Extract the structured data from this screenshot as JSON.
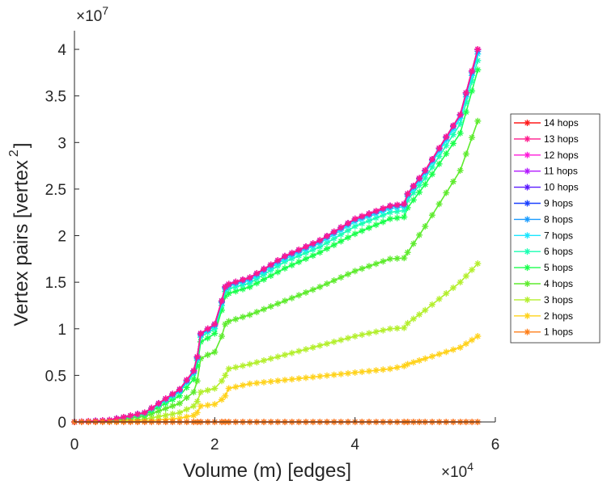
{
  "chart_data": {
    "type": "line",
    "xlabel": "Volume (m) [edges]",
    "ylabel": "Vertex pairs [vertex",
    "ylabel_superscript": "2",
    "ylabel_close": "]",
    "x_exponent_base": "×10",
    "x_exponent_power": "4",
    "y_exponent_base": "×10",
    "y_exponent_power": "7",
    "xlim": [
      0,
      6
    ],
    "ylim": [
      0,
      4.2
    ],
    "xticks": [
      0,
      2,
      4,
      6
    ],
    "xtick_labels": [
      "0",
      "2",
      "4",
      "6"
    ],
    "yticks": [
      0,
      0.5,
      1,
      1.5,
      2,
      2.5,
      3,
      3.5,
      4
    ],
    "ytick_labels": [
      "0",
      "0.5",
      "1",
      "1.5",
      "2",
      "2.5",
      "3",
      "3.5",
      "4"
    ],
    "grid": false,
    "legend_position": "right",
    "series": [
      {
        "name": "14 hops",
        "color": "#ff1a1a",
        "x": [
          0,
          0.5,
          1,
          1.5,
          1.7,
          1.75,
          1.8,
          1.9,
          2,
          2.1,
          2.15,
          2.2,
          2.5,
          3,
          3.5,
          4,
          4.5,
          4.7,
          4.75,
          5,
          5.5,
          5.75
        ],
        "values": [
          0,
          0,
          0,
          0,
          0,
          0,
          0,
          0,
          0,
          0,
          0,
          0,
          0,
          0,
          0,
          0,
          0,
          0,
          0,
          0,
          0,
          0
        ]
      },
      {
        "name": "13 hops",
        "color": "#ff1a8c",
        "x": [
          0,
          0.5,
          1,
          1.5,
          1.7,
          1.75,
          1.8,
          1.9,
          2,
          2.1,
          2.15,
          2.2,
          2.5,
          3,
          3.5,
          4,
          4.5,
          4.7,
          4.75,
          5,
          5.5,
          5.75
        ],
        "values": [
          0,
          0.02,
          0.1,
          0.35,
          0.55,
          0.7,
          0.95,
          1.0,
          1.05,
          1.3,
          1.45,
          1.48,
          1.55,
          1.78,
          1.95,
          2.18,
          2.32,
          2.34,
          2.45,
          2.7,
          3.3,
          4.0
        ]
      },
      {
        "name": "12 hops",
        "color": "#ff1ad9",
        "x": [
          0,
          0.5,
          1,
          1.5,
          1.7,
          1.75,
          1.8,
          1.9,
          2,
          2.1,
          2.15,
          2.2,
          2.5,
          3,
          3.5,
          4,
          4.5,
          4.7,
          4.75,
          5,
          5.5,
          5.75
        ],
        "values": [
          0,
          0.02,
          0.1,
          0.35,
          0.55,
          0.7,
          0.95,
          1.0,
          1.05,
          1.3,
          1.45,
          1.48,
          1.55,
          1.78,
          1.95,
          2.18,
          2.32,
          2.34,
          2.45,
          2.7,
          3.3,
          4.0
        ]
      },
      {
        "name": "11 hops",
        "color": "#b31aff",
        "x": [
          0,
          0.5,
          1,
          1.5,
          1.7,
          1.75,
          1.8,
          1.9,
          2,
          2.1,
          2.15,
          2.2,
          2.5,
          3,
          3.5,
          4,
          4.5,
          4.7,
          4.75,
          5,
          5.5,
          5.75
        ],
        "values": [
          0,
          0.02,
          0.1,
          0.35,
          0.55,
          0.7,
          0.95,
          1.0,
          1.05,
          1.3,
          1.45,
          1.48,
          1.55,
          1.78,
          1.95,
          2.18,
          2.32,
          2.34,
          2.45,
          2.7,
          3.3,
          4.0
        ]
      },
      {
        "name": "10 hops",
        "color": "#5a1aff",
        "x": [
          0,
          0.5,
          1,
          1.5,
          1.7,
          1.75,
          1.8,
          1.9,
          2,
          2.1,
          2.15,
          2.2,
          2.5,
          3,
          3.5,
          4,
          4.5,
          4.7,
          4.75,
          5,
          5.5,
          5.75
        ],
        "values": [
          0,
          0.02,
          0.1,
          0.35,
          0.55,
          0.7,
          0.95,
          1.0,
          1.05,
          1.3,
          1.45,
          1.48,
          1.55,
          1.78,
          1.95,
          2.18,
          2.32,
          2.34,
          2.45,
          2.7,
          3.3,
          4.0
        ]
      },
      {
        "name": "9 hops",
        "color": "#1a40ff",
        "x": [
          0,
          0.5,
          1,
          1.5,
          1.7,
          1.75,
          1.8,
          1.9,
          2,
          2.1,
          2.15,
          2.2,
          2.5,
          3,
          3.5,
          4,
          4.5,
          4.7,
          4.75,
          5,
          5.5,
          5.75
        ],
        "values": [
          0,
          0.02,
          0.1,
          0.35,
          0.55,
          0.7,
          0.95,
          1.0,
          1.05,
          1.3,
          1.45,
          1.48,
          1.55,
          1.78,
          1.95,
          2.18,
          2.32,
          2.34,
          2.45,
          2.7,
          3.3,
          4.0
        ]
      },
      {
        "name": "8 hops",
        "color": "#1a9cff",
        "x": [
          0,
          0.5,
          1,
          1.5,
          1.7,
          1.75,
          1.8,
          1.9,
          2,
          2.1,
          2.15,
          2.2,
          2.5,
          3,
          3.5,
          4,
          4.5,
          4.7,
          4.75,
          5,
          5.5,
          5.75
        ],
        "values": [
          0,
          0.02,
          0.1,
          0.34,
          0.54,
          0.69,
          0.94,
          0.99,
          1.04,
          1.29,
          1.44,
          1.47,
          1.54,
          1.77,
          1.94,
          2.17,
          2.31,
          2.33,
          2.44,
          2.69,
          3.29,
          3.98
        ]
      },
      {
        "name": "7 hops",
        "color": "#1ae6ff",
        "x": [
          0,
          0.5,
          1,
          1.5,
          1.7,
          1.75,
          1.8,
          1.9,
          2,
          2.1,
          2.15,
          2.2,
          2.5,
          3,
          3.5,
          4,
          4.5,
          4.7,
          4.75,
          5,
          5.5,
          5.75
        ],
        "values": [
          0,
          0.02,
          0.1,
          0.33,
          0.53,
          0.68,
          0.93,
          0.98,
          1.03,
          1.28,
          1.43,
          1.46,
          1.52,
          1.75,
          1.92,
          2.15,
          2.29,
          2.31,
          2.42,
          2.67,
          3.26,
          3.95
        ]
      },
      {
        "name": "6 hops",
        "color": "#1affb3",
        "x": [
          0,
          0.5,
          1,
          1.5,
          1.7,
          1.75,
          1.8,
          1.9,
          2,
          2.1,
          2.15,
          2.2,
          2.5,
          3,
          3.5,
          4,
          4.5,
          4.7,
          4.75,
          5,
          5.5,
          5.75
        ],
        "values": [
          0,
          0.02,
          0.09,
          0.32,
          0.52,
          0.66,
          0.91,
          0.96,
          1.0,
          1.25,
          1.4,
          1.43,
          1.49,
          1.72,
          1.88,
          2.1,
          2.25,
          2.27,
          2.38,
          2.62,
          3.2,
          3.88
        ]
      },
      {
        "name": "5 hops",
        "color": "#1aff4d",
        "x": [
          0,
          0.5,
          1,
          1.5,
          1.7,
          1.75,
          1.8,
          1.9,
          2,
          2.1,
          2.15,
          2.2,
          2.5,
          3,
          3.5,
          4,
          4.5,
          4.7,
          4.75,
          5,
          5.5,
          5.75
        ],
        "values": [
          0,
          0.02,
          0.08,
          0.28,
          0.46,
          0.6,
          0.86,
          0.9,
          0.95,
          1.2,
          1.35,
          1.38,
          1.45,
          1.65,
          1.82,
          2.02,
          2.18,
          2.2,
          2.3,
          2.55,
          3.1,
          3.78
        ]
      },
      {
        "name": "4 hops",
        "color": "#5eeb2e",
        "x": [
          0,
          0.5,
          1,
          1.5,
          1.7,
          1.75,
          1.8,
          1.9,
          2,
          2.1,
          2.15,
          2.2,
          2.5,
          3,
          3.5,
          4,
          4.5,
          4.7,
          4.75,
          5,
          5.5,
          5.75
        ],
        "values": [
          0,
          0.01,
          0.06,
          0.2,
          0.32,
          0.44,
          0.68,
          0.72,
          0.75,
          0.92,
          1.05,
          1.08,
          1.15,
          1.3,
          1.45,
          1.62,
          1.75,
          1.76,
          1.82,
          2.1,
          2.7,
          3.23
        ]
      },
      {
        "name": "3 hops",
        "color": "#b3ef2c",
        "x": [
          0,
          0.5,
          1,
          1.5,
          1.7,
          1.75,
          1.8,
          1.9,
          2,
          2.1,
          2.15,
          2.2,
          2.5,
          3,
          3.5,
          4,
          4.5,
          4.7,
          4.75,
          5,
          5.5,
          5.75
        ],
        "values": [
          0,
          0.01,
          0.03,
          0.1,
          0.17,
          0.22,
          0.32,
          0.34,
          0.36,
          0.44,
          0.5,
          0.57,
          0.62,
          0.72,
          0.82,
          0.92,
          1.0,
          1.01,
          1.06,
          1.2,
          1.5,
          1.7
        ]
      },
      {
        "name": "2 hops",
        "color": "#ffd21a",
        "x": [
          0,
          0.5,
          1,
          1.5,
          1.7,
          1.75,
          1.8,
          1.9,
          2,
          2.1,
          2.15,
          2.2,
          2.5,
          3,
          3.5,
          4,
          4.5,
          4.7,
          4.75,
          5,
          5.5,
          5.75
        ],
        "values": [
          0,
          0.005,
          0.01,
          0.04,
          0.07,
          0.1,
          0.17,
          0.18,
          0.19,
          0.24,
          0.28,
          0.36,
          0.41,
          0.45,
          0.49,
          0.53,
          0.57,
          0.6,
          0.62,
          0.68,
          0.8,
          0.92
        ]
      },
      {
        "name": "1 hops",
        "color": "#ff7f1a",
        "x": [
          0,
          0.5,
          1,
          1.5,
          1.7,
          1.75,
          1.8,
          1.9,
          2,
          2.1,
          2.15,
          2.2,
          2.5,
          3,
          3.5,
          4,
          4.5,
          4.7,
          4.75,
          5,
          5.5,
          5.75
        ],
        "values": [
          0,
          0,
          0,
          0,
          0,
          0,
          0,
          0,
          0,
          0,
          0,
          0,
          0,
          0,
          0,
          0,
          0,
          0,
          0,
          0,
          0,
          0
        ]
      }
    ]
  }
}
